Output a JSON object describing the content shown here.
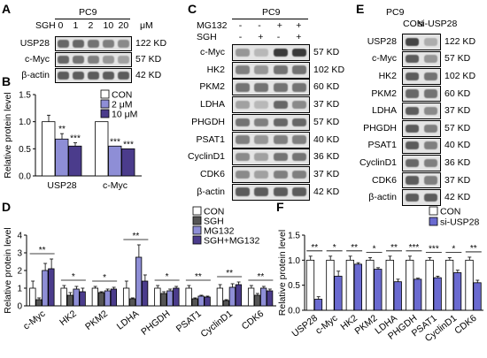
{
  "panels": {
    "A": {
      "letter": "A",
      "treatment_label": "SGH",
      "cell_line": "PC9",
      "doses": [
        "0",
        "1",
        "2",
        "10",
        "20"
      ],
      "dose_unit": "μM",
      "rows": [
        {
          "label": "USP28",
          "size": "122 KD",
          "intensity": [
            0.55,
            0.55,
            0.5,
            0.45,
            0.4
          ]
        },
        {
          "label": "c-Myc",
          "size": "57 KD",
          "intensity": [
            0.55,
            0.5,
            0.45,
            0.35,
            0.3
          ]
        },
        {
          "label": "β-actin",
          "size": "42 KD",
          "intensity": [
            0.6,
            0.6,
            0.6,
            0.6,
            0.6
          ]
        }
      ]
    },
    "C": {
      "letter": "C",
      "cell_line": "PC9",
      "treatments": [
        {
          "label": "MG132",
          "marks": [
            "-",
            "-",
            "+",
            "+"
          ]
        },
        {
          "label": "SGH",
          "marks": [
            "-",
            "+",
            "-",
            "+"
          ]
        }
      ],
      "rows": [
        {
          "label": "c-Myc",
          "size": "57 KD",
          "intensity": [
            0.35,
            0.2,
            0.75,
            0.75
          ]
        },
        {
          "label": "HK2",
          "size": "102 KD",
          "intensity": [
            0.45,
            0.35,
            0.5,
            0.5
          ]
        },
        {
          "label": "PKM2",
          "size": "60 KD",
          "intensity": [
            0.5,
            0.5,
            0.5,
            0.5
          ]
        },
        {
          "label": "LDHA",
          "size": "37 KD",
          "intensity": [
            0.3,
            0.2,
            0.55,
            0.4
          ]
        },
        {
          "label": "PHGDH",
          "size": "57 KD",
          "intensity": [
            0.5,
            0.45,
            0.55,
            0.55
          ]
        },
        {
          "label": "PSAT1",
          "size": "40 KD",
          "intensity": [
            0.45,
            0.35,
            0.45,
            0.45
          ]
        },
        {
          "label": "CyclinD1",
          "size": "36 KD",
          "intensity": [
            0.4,
            0.3,
            0.5,
            0.5
          ]
        },
        {
          "label": "CDK6",
          "size": "37 KD",
          "intensity": [
            0.4,
            0.3,
            0.45,
            0.45
          ]
        },
        {
          "label": "β-actin",
          "size": "42 KD",
          "intensity": [
            0.6,
            0.6,
            0.6,
            0.6
          ]
        }
      ]
    },
    "E": {
      "letter": "E",
      "cell_line": "PC9",
      "lanes": [
        "CON",
        "si-USP28"
      ],
      "rows": [
        {
          "label": "USP28",
          "size": "122 KD",
          "intensity": [
            0.7,
            0.25
          ]
        },
        {
          "label": "c-Myc",
          "size": "57 KD",
          "intensity": [
            0.6,
            0.35
          ]
        },
        {
          "label": "HK2",
          "size": "102 KD",
          "intensity": [
            0.6,
            0.5
          ]
        },
        {
          "label": "PKM2",
          "size": "60 KD",
          "intensity": [
            0.55,
            0.5
          ]
        },
        {
          "label": "LDHA",
          "size": "37 KD",
          "intensity": [
            0.6,
            0.4
          ]
        },
        {
          "label": "PHGDH",
          "size": "57 KD",
          "intensity": [
            0.6,
            0.45
          ]
        },
        {
          "label": "PSAT1",
          "size": "40 KD",
          "intensity": [
            0.6,
            0.45
          ]
        },
        {
          "label": "CyclinD1",
          "size": "36 KD",
          "intensity": [
            0.55,
            0.45
          ]
        },
        {
          "label": "CDK6",
          "size": "37 KD",
          "intensity": [
            0.6,
            0.45
          ]
        },
        {
          "label": "β-actin",
          "size": "42 KD",
          "intensity": [
            0.6,
            0.6
          ]
        }
      ]
    },
    "B_letter": "B",
    "D_letter": "D",
    "F_letter": "F"
  },
  "colors": {
    "con": "#ffffff",
    "dark_gray": "#555555",
    "light_purple": "#8e8ed6",
    "dark_purple": "#4b3c8c",
    "blue_purple": "#6a6ad0"
  },
  "chart_data": [
    {
      "id": "B",
      "type": "bar",
      "title": "",
      "xlabel": "",
      "ylabel": "Relative protein level",
      "ylim": [
        0,
        1.5
      ],
      "yticks": [
        "0.0",
        "0.5",
        "1.0",
        "1.5"
      ],
      "categories": [
        "USP28",
        "c-Myc"
      ],
      "series": [
        {
          "name": "CON",
          "values": [
            1.0,
            1.0
          ],
          "errors": [
            0.12,
            0.0
          ],
          "color": "#ffffff"
        },
        {
          "name": "2 μM",
          "values": [
            0.68,
            0.55
          ],
          "errors": [
            0.1,
            0.0
          ],
          "color": "#8e8ed6"
        },
        {
          "name": "10 μM",
          "values": [
            0.55,
            0.5
          ],
          "errors": [
            0.06,
            0.0
          ],
          "color": "#4b3c8c"
        }
      ],
      "significance": [
        [
          "",
          "**",
          "***"
        ],
        [
          "",
          "***",
          "***"
        ]
      ],
      "legend": "top-right"
    },
    {
      "id": "D",
      "type": "bar",
      "title": "",
      "xlabel": "",
      "ylabel": "Relative protein level",
      "ylim": [
        0,
        4
      ],
      "yticks": [
        "0",
        "1",
        "2",
        "3",
        "4"
      ],
      "categories": [
        "c-Myc",
        "HK2",
        "PKM2",
        "LDHA",
        "PHGDH",
        "PSAT1",
        "CyclinD1",
        "CDK6"
      ],
      "series": [
        {
          "name": "CON",
          "values": [
            1,
            1,
            1,
            1,
            1,
            1,
            1,
            1
          ],
          "errors": [
            0.4,
            0.15,
            0.1,
            0.4,
            0.15,
            0.15,
            0.2,
            0.15
          ],
          "color": "#ffffff"
        },
        {
          "name": "SGH",
          "values": [
            0.35,
            0.6,
            0.75,
            0.4,
            0.7,
            0.4,
            0.3,
            0.6
          ],
          "errors": [
            0.1,
            0.15,
            0.05,
            0.05,
            0.1,
            0.05,
            0.05,
            0.1
          ],
          "color": "#555555"
        },
        {
          "name": "MG132",
          "values": [
            2.0,
            0.95,
            0.85,
            2.75,
            0.85,
            0.55,
            1.05,
            1.0
          ],
          "errors": [
            0.4,
            0.15,
            0.1,
            0.7,
            0.1,
            0.05,
            0.2,
            0.1
          ],
          "color": "#8e8ed6"
        },
        {
          "name": "SGH+MG132",
          "values": [
            2.1,
            0.8,
            0.95,
            1.4,
            1.0,
            0.5,
            1.2,
            0.85
          ],
          "errors": [
            0.55,
            0.2,
            0.1,
            0.35,
            0.1,
            0.05,
            0.15,
            0.1
          ],
          "color": "#4b3c8c"
        }
      ],
      "significance": [
        "**",
        "*",
        "*",
        "**",
        "*",
        "**",
        "**",
        "**"
      ],
      "legend": "top-right"
    },
    {
      "id": "F",
      "type": "bar",
      "title": "",
      "xlabel": "",
      "ylabel": "Relative protein level",
      "ylim": [
        0,
        1.5
      ],
      "yticks": [
        "0.0",
        "0.5",
        "1.0",
        "1.5"
      ],
      "categories": [
        "USP28",
        "c-Myc",
        "HK2",
        "PKM2",
        "LDHA",
        "PHGDH",
        "PSAT1",
        "CyclinD1",
        "CDK6"
      ],
      "series": [
        {
          "name": "CON",
          "values": [
            1.0,
            1.0,
            1.0,
            1.0,
            1.0,
            1.0,
            1.0,
            1.0,
            1.0
          ],
          "errors": [
            0.08,
            0.08,
            0.08,
            0.05,
            0.08,
            0.08,
            0.05,
            0.05,
            0.06
          ],
          "color": "#ffffff"
        },
        {
          "name": "si-USP28",
          "values": [
            0.22,
            0.68,
            0.92,
            0.82,
            0.57,
            0.62,
            0.65,
            0.75,
            0.55
          ],
          "errors": [
            0.05,
            0.1,
            0.03,
            0.03,
            0.05,
            0.02,
            0.03,
            0.05,
            0.05
          ],
          "color": "#6a6ad0"
        }
      ],
      "significance": [
        "**",
        "*",
        "**",
        "*",
        "**",
        "***",
        "***",
        "*",
        "**"
      ],
      "legend": "top-right"
    }
  ]
}
